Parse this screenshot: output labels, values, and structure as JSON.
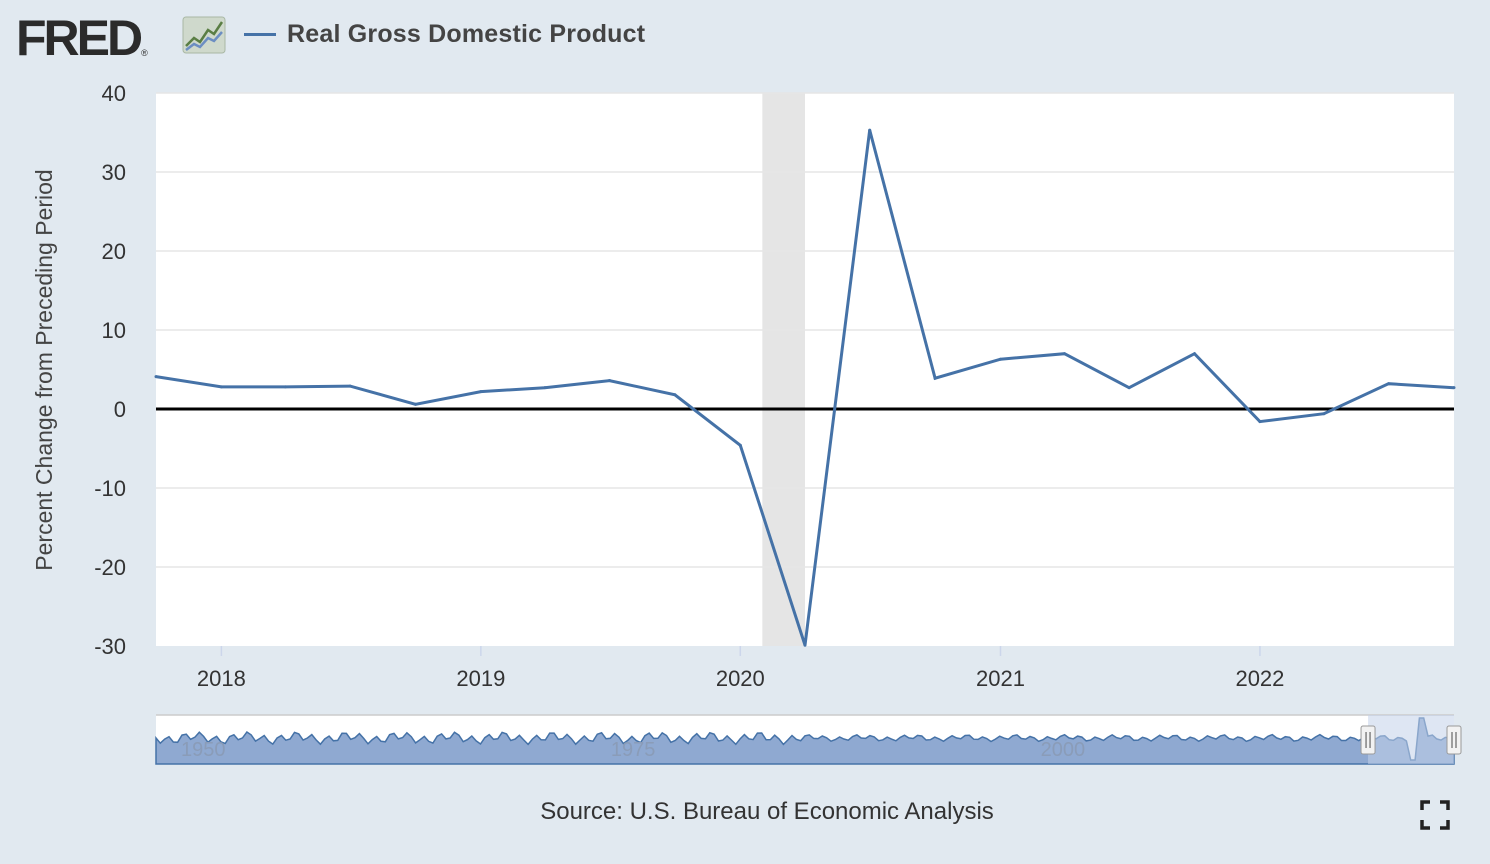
{
  "header": {
    "logo_text": "FRED",
    "logo_mark": "®",
    "legend_label": "Real Gross Domestic Product"
  },
  "footer": {
    "source": "Source: U.S. Bureau of Economic Analysis"
  },
  "colors": {
    "series": "#4572a7",
    "recession": "#e5e5e5",
    "zero_line": "#000000",
    "navigator_fill": "#8fa9d1",
    "navigator_selected": "#c2d1ea"
  },
  "icons": {
    "graph": "fred-graph-icon",
    "fullscreen": "fullscreen-icon"
  },
  "chart_data": {
    "type": "line",
    "ylabel": "Percent Change from Preceding Period",
    "xlabel": "",
    "ylim": [
      -30,
      40
    ],
    "yticks": [
      40,
      30,
      20,
      10,
      0,
      -10,
      -20,
      -30
    ],
    "xlim": [
      "2017-10-01",
      "2022-10-01"
    ],
    "xticks": [
      {
        "label": "2018",
        "date": "2018-01-01"
      },
      {
        "label": "2019",
        "date": "2019-01-01"
      },
      {
        "label": "2020",
        "date": "2020-01-01"
      },
      {
        "label": "2021",
        "date": "2021-01-01"
      },
      {
        "label": "2022",
        "date": "2022-01-01"
      }
    ],
    "grid": true,
    "legend": "top-left",
    "recessions": [
      {
        "start": "2020-02-01",
        "end": "2020-04-01"
      }
    ],
    "series": [
      {
        "name": "Real Gross Domestic Product",
        "points": [
          {
            "date": "2017-10-01",
            "value": 4.1
          },
          {
            "date": "2018-01-01",
            "value": 2.8
          },
          {
            "date": "2018-04-01",
            "value": 2.8
          },
          {
            "date": "2018-07-01",
            "value": 2.9
          },
          {
            "date": "2018-10-01",
            "value": 0.6
          },
          {
            "date": "2019-01-01",
            "value": 2.2
          },
          {
            "date": "2019-04-01",
            "value": 2.7
          },
          {
            "date": "2019-07-01",
            "value": 3.6
          },
          {
            "date": "2019-10-01",
            "value": 1.8
          },
          {
            "date": "2020-01-01",
            "value": -4.6
          },
          {
            "date": "2020-04-01",
            "value": -29.9
          },
          {
            "date": "2020-07-01",
            "value": 35.3
          },
          {
            "date": "2020-10-01",
            "value": 3.9
          },
          {
            "date": "2021-01-01",
            "value": 6.3
          },
          {
            "date": "2021-04-01",
            "value": 7.0
          },
          {
            "date": "2021-07-01",
            "value": 2.7
          },
          {
            "date": "2021-10-01",
            "value": 7.0
          },
          {
            "date": "2022-01-01",
            "value": -1.6
          },
          {
            "date": "2022-04-01",
            "value": -0.6
          },
          {
            "date": "2022-07-01",
            "value": 3.2
          },
          {
            "date": "2022-10-01",
            "value": 2.7
          }
        ]
      }
    ],
    "navigator": {
      "labels": [
        "1950",
        "1975",
        "2000"
      ],
      "label_years": [
        1950,
        1975,
        2000
      ],
      "range_years": [
        1947.25,
        2022.75
      ],
      "selected_years": [
        2017.75,
        2022.75
      ]
    }
  }
}
